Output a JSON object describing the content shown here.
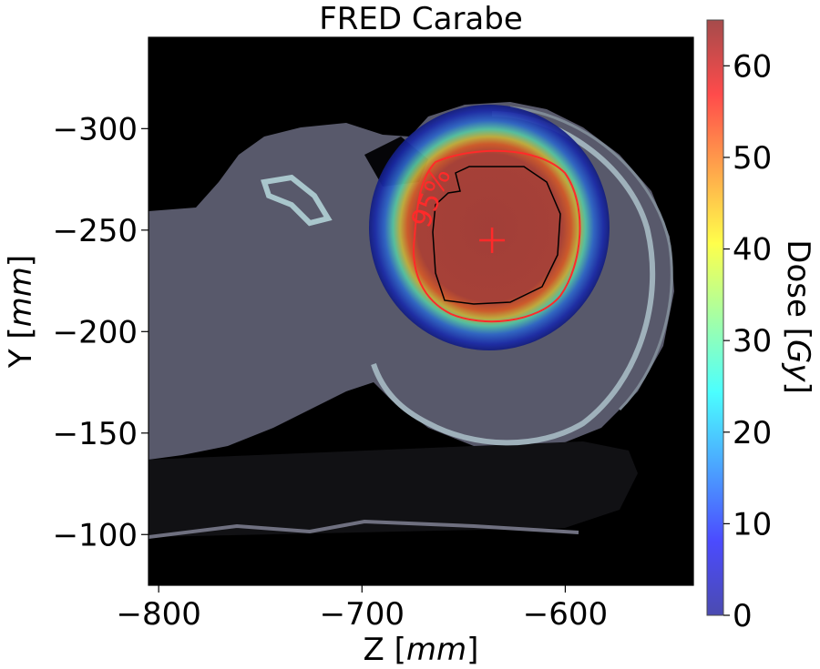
{
  "chart_data": {
    "type": "heatmap",
    "title": "FRED Carabe",
    "xlabel": "Z [mm]",
    "ylabel": "Y [mm]",
    "xlabel_parts": {
      "main": "Z [",
      "unit": "mm",
      "end": "]"
    },
    "ylabel_parts": {
      "main": "Y [",
      "unit": "mm",
      "end": "]"
    },
    "xlim": [
      -805,
      -537
    ],
    "ylim": [
      -345,
      -75
    ],
    "y_inverted": true,
    "xticks": [
      -800,
      -700,
      -600
    ],
    "yticks": [
      -300,
      -250,
      -200,
      -150,
      -100
    ],
    "xtick_labels": [
      "−800",
      "−700",
      "−600"
    ],
    "ytick_labels": [
      "−300",
      "−250",
      "−200",
      "−150",
      "−100"
    ],
    "colorbar": {
      "label": "Dose [Gy]",
      "label_parts": {
        "main": "Dose [",
        "unit": "Gy",
        "end": "]"
      },
      "range": [
        0,
        65
      ],
      "ticks": [
        0,
        10,
        20,
        30,
        40,
        50,
        60
      ],
      "tick_labels": [
        "0",
        "10",
        "20",
        "30",
        "40",
        "50",
        "60"
      ],
      "colormap": "jet"
    },
    "background": "CT slice (grayscale)",
    "isodose_annotation": "95%",
    "isodose_color": "#ff2a2a",
    "target_contour_color": "#000000",
    "isocenter_marker": {
      "z": -636,
      "y": -245,
      "color": "#ff2a2a"
    }
  }
}
